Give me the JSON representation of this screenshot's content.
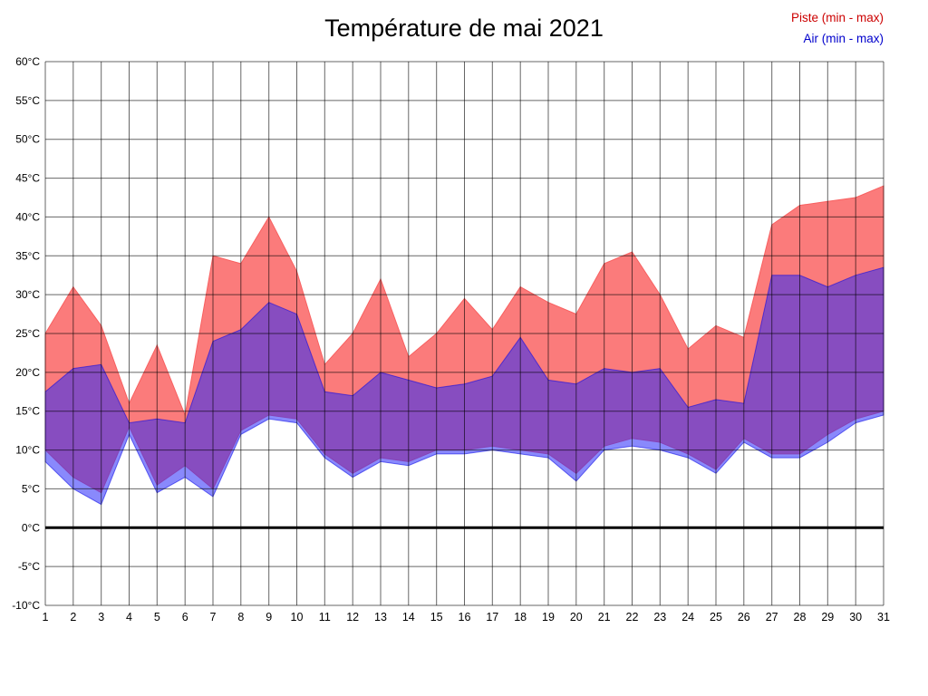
{
  "page": {
    "background": "#ffffff"
  },
  "chart_data": {
    "type": "area",
    "title": "Température de mai 2021",
    "legend": [
      {
        "label": "Piste (min - max)",
        "color": "#cc0000"
      },
      {
        "label": "Air (min - max)",
        "color": "#0000cc"
      }
    ],
    "xlabel": "",
    "ylabel": "",
    "x": [
      1,
      2,
      3,
      4,
      5,
      6,
      7,
      8,
      9,
      10,
      11,
      12,
      13,
      14,
      15,
      16,
      17,
      18,
      19,
      20,
      21,
      22,
      23,
      24,
      25,
      26,
      27,
      28,
      29,
      30,
      31
    ],
    "series": [
      {
        "name": "Piste max",
        "values": [
          25,
          31,
          26,
          16,
          23.5,
          14.5,
          35,
          34,
          40,
          33,
          21,
          25,
          32,
          22,
          25,
          29.5,
          25.5,
          31,
          29,
          27.5,
          34,
          35.5,
          30,
          23,
          26,
          24.5,
          39,
          41.5,
          42,
          42.5,
          44
        ]
      },
      {
        "name": "Piste min",
        "values": [
          10,
          6.5,
          4.5,
          13,
          5.5,
          8,
          5,
          12.5,
          14.5,
          14,
          9.5,
          7,
          9,
          8.5,
          10,
          10,
          10.5,
          10,
          9.5,
          7,
          10.5,
          11.5,
          11,
          9.5,
          7.5,
          11.5,
          9.5,
          9.5,
          12,
          14,
          15
        ]
      },
      {
        "name": "Air max",
        "values": [
          17.5,
          20.5,
          21,
          13.5,
          14,
          13.5,
          24,
          25.5,
          29,
          27.5,
          17.5,
          17,
          20,
          19,
          18,
          18.5,
          19.5,
          24.5,
          19,
          18.5,
          20.5,
          20,
          20.5,
          15.5,
          16.5,
          16,
          32.5,
          32.5,
          31,
          32.5,
          33.5
        ]
      },
      {
        "name": "Air min",
        "values": [
          8.5,
          5,
          3,
          12,
          4.5,
          6.5,
          4,
          12,
          14,
          13.5,
          9,
          6.5,
          8.5,
          8,
          9.5,
          9.5,
          10,
          9.5,
          9,
          6,
          10,
          10.5,
          10,
          9,
          7,
          11,
          9,
          9,
          11,
          13.5,
          14.5
        ]
      }
    ],
    "ylim": [
      -10,
      60
    ],
    "ytick_step": 5,
    "ytick_suffix": "°C",
    "grid": true,
    "legend_position": "top-right",
    "zero_line_value": 0,
    "colors": {
      "piste_fill": "#fb7b7b",
      "piste_edge": "#f86060",
      "air_fill": "rgba(40,40,250,0.55)",
      "air_edge": "rgba(0,0,230,0.55)",
      "grid": "rgba(0,0,0,0.6)",
      "zero_line": "#000000",
      "tick_text": "#000000"
    }
  }
}
